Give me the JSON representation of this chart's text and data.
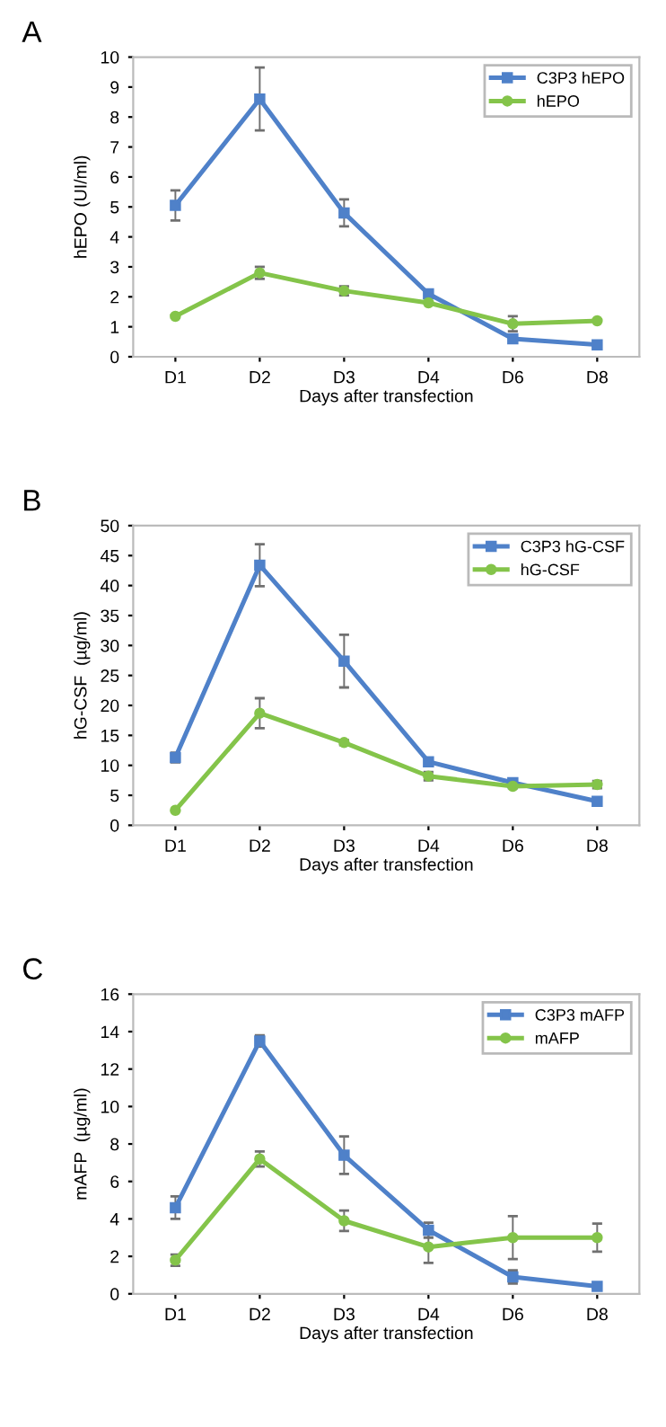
{
  "chart_data": [
    {
      "type": "line",
      "title": "A",
      "xlabel": "Days after transfection",
      "ylabel": "hEPO (UI/ml)",
      "categories": [
        "D1",
        "D2",
        "D3",
        "D4",
        "D6",
        "D8"
      ],
      "ylim": [
        0,
        10
      ],
      "yticks": [
        0,
        1,
        2,
        3,
        4,
        5,
        6,
        7,
        8,
        9,
        10
      ],
      "grid": false,
      "legend": "top right",
      "line_style": "solid",
      "series": [
        {
          "name": "C3P3 hEPO",
          "color": "#4f81c9",
          "marker": "square",
          "values": [
            5.05,
            8.6,
            4.8,
            2.1,
            0.6,
            0.4
          ],
          "errors": [
            0.5,
            1.05,
            0.45,
            null,
            null,
            null
          ]
        },
        {
          "name": "hEPO",
          "color": "#84c44a",
          "marker": "circle",
          "values": [
            1.35,
            2.8,
            2.2,
            1.8,
            1.1,
            1.2
          ],
          "errors": [
            0.05,
            0.2,
            0.15,
            null,
            0.25,
            null
          ]
        }
      ]
    },
    {
      "type": "line",
      "title": "B",
      "xlabel": "Days after transfection",
      "ylabel": "hG-CSF  (µg/ml)",
      "categories": [
        "D1",
        "D2",
        "D3",
        "D4",
        "D6",
        "D8"
      ],
      "ylim": [
        0,
        50
      ],
      "yticks": [
        0,
        5,
        10,
        15,
        20,
        25,
        30,
        35,
        40,
        45,
        50
      ],
      "grid": false,
      "legend": "top right",
      "line_style": "solid",
      "series": [
        {
          "name": "C3P3 hG-CSF",
          "color": "#4f81c9",
          "marker": "square",
          "values": [
            11.3,
            43.4,
            27.4,
            10.6,
            7.1,
            4.0
          ],
          "errors": [
            0.8,
            3.5,
            4.4,
            null,
            0.3,
            0.2
          ]
        },
        {
          "name": "hG-CSF",
          "color": "#84c44a",
          "marker": "circle",
          "values": [
            2.5,
            18.7,
            13.8,
            8.2,
            6.5,
            6.8
          ],
          "errors": [
            null,
            2.5,
            0.4,
            0.7,
            0.3,
            0.6
          ]
        }
      ]
    },
    {
      "type": "line",
      "title": "C",
      "xlabel": "Days after transfection",
      "ylabel": "mAFP  (µg/ml)",
      "categories": [
        "D1",
        "D2",
        "D3",
        "D4",
        "D6",
        "D8"
      ],
      "ylim": [
        0,
        16
      ],
      "yticks": [
        0,
        2,
        4,
        6,
        8,
        10,
        12,
        14,
        16
      ],
      "grid": false,
      "legend": "top right",
      "line_style": "solid",
      "series": [
        {
          "name": "C3P3 mAFP",
          "color": "#4f81c9",
          "marker": "square",
          "values": [
            4.6,
            13.5,
            7.4,
            3.4,
            0.9,
            0.4
          ],
          "errors": [
            0.6,
            0.3,
            1.0,
            0.4,
            0.35,
            0.1
          ]
        },
        {
          "name": "mAFP",
          "color": "#84c44a",
          "marker": "circle",
          "values": [
            1.8,
            7.2,
            3.9,
            2.5,
            3.0,
            3.0
          ],
          "errors": [
            0.3,
            0.4,
            0.55,
            0.85,
            1.15,
            0.75
          ]
        }
      ]
    }
  ]
}
